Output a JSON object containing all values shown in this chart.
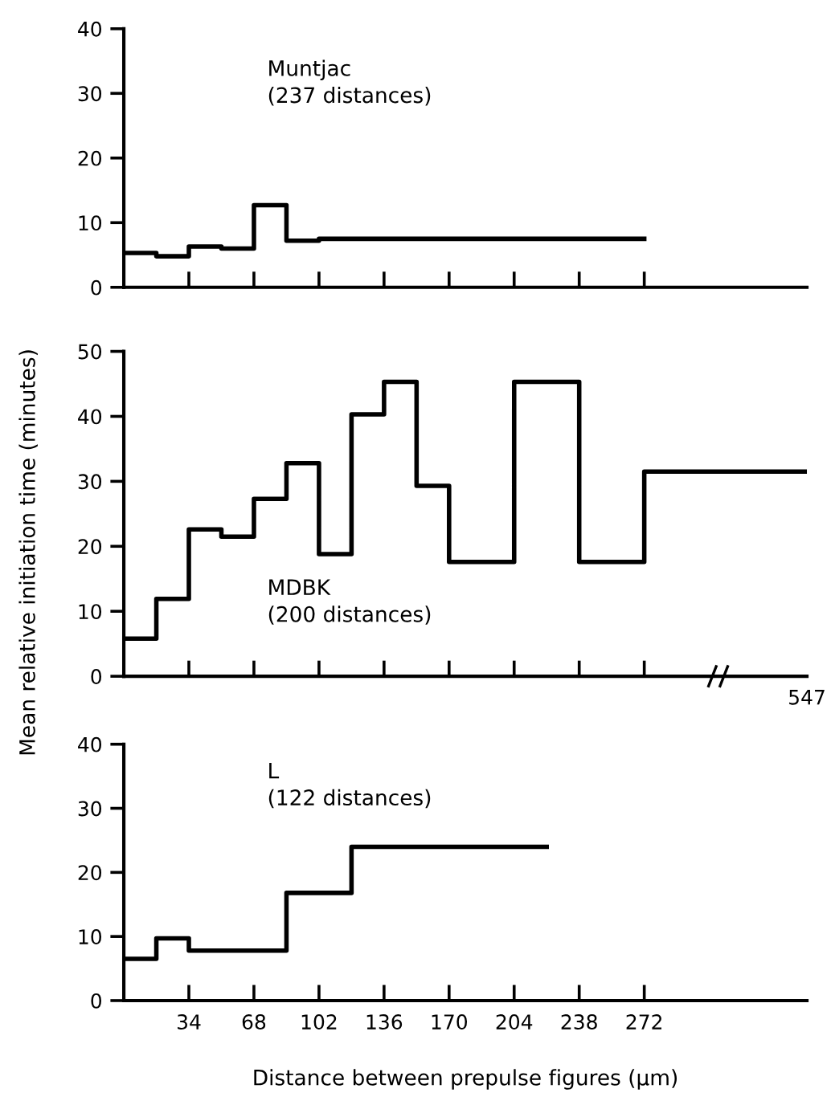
{
  "chart_data": [
    {
      "type": "step",
      "annotations": [
        "Muntjac\n(237 distances)"
      ],
      "x": [
        0,
        17,
        34,
        51,
        68,
        85,
        102,
        272
      ],
      "values": [
        5.3,
        4.8,
        6.3,
        6.0,
        12.7,
        7.2,
        7.5,
        7.5
      ],
      "color": "#000000",
      "xlim": [
        0,
        357
      ],
      "ylim": [
        0,
        40
      ],
      "yticks": [
        0,
        10,
        20,
        30,
        40
      ],
      "xticks": [
        {
          "value": 34,
          "label": null
        },
        {
          "value": 68,
          "label": null
        },
        {
          "value": 102,
          "label": null
        },
        {
          "value": 136,
          "label": null
        },
        {
          "value": 170,
          "label": null
        },
        {
          "value": 204,
          "label": null
        },
        {
          "value": 238,
          "label": null
        },
        {
          "value": 272,
          "label": null
        }
      ],
      "tick_labels": "y",
      "grid": false,
      "legend": false
    },
    {
      "type": "step",
      "ylabel": "Mean relative initiation time (minutes)",
      "annotations": [
        "MDBK\n(200 distances)",
        "547"
      ],
      "x": [
        0,
        17,
        34,
        51,
        68,
        85,
        102,
        119,
        136,
        153,
        170,
        204,
        238,
        272,
        357
      ],
      "values": [
        5.8,
        11.9,
        22.6,
        21.5,
        27.3,
        32.8,
        18.8,
        40.3,
        45.3,
        29.3,
        17.6,
        45.3,
        17.6,
        31.5,
        31.5
      ],
      "color": "#000000",
      "xlim": [
        0,
        357
      ],
      "ylim": [
        0,
        50
      ],
      "yticks": [
        0,
        10,
        20,
        30,
        40,
        50
      ],
      "xticks": [
        {
          "value": 34,
          "label": null
        },
        {
          "value": 68,
          "label": null
        },
        {
          "value": 102,
          "label": null
        },
        {
          "value": 136,
          "label": null
        },
        {
          "value": 170,
          "label": null
        },
        {
          "value": 204,
          "label": null
        },
        {
          "value": 238,
          "label": null
        },
        {
          "value": 272,
          "label": null
        }
      ],
      "tick_labels": "y",
      "grid": false,
      "legend": false
    },
    {
      "type": "step",
      "xlabel": "Distance between prepulse figures (μm)",
      "annotations": [
        "L\n(122 distances)"
      ],
      "x": [
        0,
        17,
        34,
        85,
        119,
        221
      ],
      "values": [
        6.5,
        9.7,
        7.8,
        16.8,
        24.0,
        24.0
      ],
      "color": "#000000",
      "xlim": [
        0,
        357
      ],
      "ylim": [
        0,
        40
      ],
      "yticks": [
        0,
        10,
        20,
        30,
        40
      ],
      "xticks": [
        34,
        68,
        102,
        136,
        170,
        204,
        238,
        272
      ],
      "grid": false,
      "legend": false
    }
  ]
}
